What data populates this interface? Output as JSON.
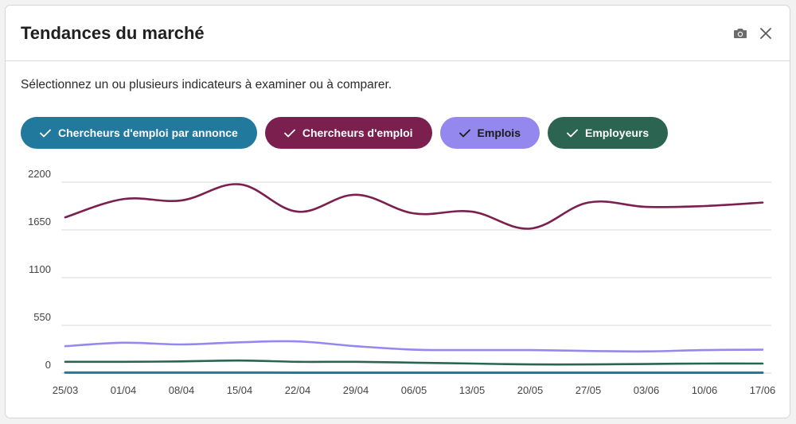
{
  "panel": {
    "title": "Tendances du marché",
    "subtitle": "Sélectionnez un ou plusieurs indicateurs à examiner ou à comparer.",
    "icons": [
      "camera-icon",
      "close-icon"
    ]
  },
  "chips": [
    {
      "label": "Chercheurs d'emploi par annonce",
      "bg": "#21799e",
      "fg": "#ffffff",
      "selected": true
    },
    {
      "label": "Chercheurs d'emploi",
      "bg": "#7a1f4e",
      "fg": "#ffffff",
      "selected": true
    },
    {
      "label": "Emplois",
      "bg": "#9488ee",
      "fg": "#1b1b1b",
      "selected": true
    },
    {
      "label": "Employeurs",
      "bg": "#2b6551",
      "fg": "#ffffff",
      "selected": true
    }
  ],
  "chart_data": {
    "type": "line",
    "title": "",
    "xlabel": "",
    "ylabel": "",
    "categories": [
      "25/03",
      "01/04",
      "08/04",
      "15/04",
      "22/04",
      "29/04",
      "06/05",
      "13/05",
      "20/05",
      "27/05",
      "03/06",
      "10/06",
      "17/06"
    ],
    "y_ticks": [
      0,
      550,
      1100,
      1650,
      2200
    ],
    "ylim": [
      0,
      2200
    ],
    "grid": true,
    "legend": "top",
    "series": [
      {
        "name": "Chercheurs d'emploi par annonce",
        "color": "#21799e",
        "values": [
          6,
          6,
          6,
          6,
          5,
          5,
          5,
          5,
          5,
          5,
          5,
          5,
          5
        ]
      },
      {
        "name": "Chercheurs d'emploi",
        "color": "#7a1f4e",
        "values": [
          1795,
          2005,
          1990,
          2175,
          1860,
          2055,
          1840,
          1860,
          1665,
          1965,
          1915,
          1925,
          1965
        ]
      },
      {
        "name": "Emplois",
        "color": "#9488ee",
        "values": [
          310,
          350,
          330,
          355,
          365,
          310,
          270,
          265,
          265,
          255,
          250,
          265,
          270
        ]
      },
      {
        "name": "Employeurs",
        "color": "#2b6551",
        "values": [
          130,
          130,
          135,
          145,
          130,
          130,
          120,
          110,
          100,
          100,
          105,
          110,
          110
        ]
      }
    ]
  }
}
